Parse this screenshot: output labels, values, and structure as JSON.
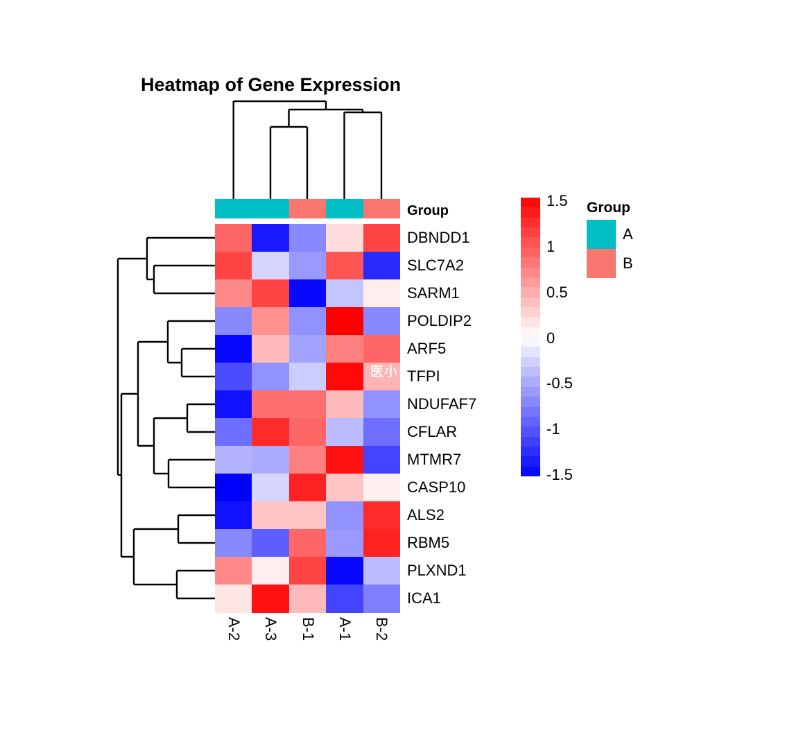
{
  "title": "Heatmap of Gene Expression",
  "watermark": "医小",
  "chart_data": {
    "type": "heatmap",
    "title": "Heatmap of Gene Expression",
    "columns": [
      "A-2",
      "A-3",
      "B-1",
      "A-1",
      "B-2"
    ],
    "column_groups": [
      "A",
      "A",
      "B",
      "A",
      "B"
    ],
    "rows": [
      "DBNDD1",
      "SLC7A2",
      "SARM1",
      "POLDIP2",
      "ARF5",
      "TFPI",
      "NDUFAF7",
      "CFLAR",
      "MTMR7",
      "CASP10",
      "ALS2",
      "RBM5",
      "PLXND1",
      "ICA1"
    ],
    "values": [
      [
        0.9,
        -1.35,
        -0.7,
        0.2,
        1.1
      ],
      [
        1.1,
        -0.25,
        -0.6,
        1.0,
        -1.25
      ],
      [
        0.7,
        1.1,
        -1.45,
        -0.35,
        0.1
      ],
      [
        -0.7,
        0.65,
        -0.65,
        1.5,
        -0.7
      ],
      [
        -1.45,
        0.4,
        -0.55,
        0.75,
        0.9
      ],
      [
        -1.05,
        -0.65,
        -0.3,
        1.45,
        0.45
      ],
      [
        -1.4,
        0.85,
        0.85,
        0.4,
        -0.65
      ],
      [
        -0.85,
        1.25,
        0.9,
        -0.4,
        -0.85
      ],
      [
        -0.45,
        -0.5,
        0.75,
        1.4,
        -1.1
      ],
      [
        -1.5,
        -0.25,
        1.3,
        0.35,
        0.1
      ],
      [
        -1.4,
        0.35,
        0.35,
        -0.65,
        1.25
      ],
      [
        -0.7,
        -0.95,
        0.9,
        -0.6,
        1.3
      ],
      [
        0.7,
        0.1,
        1.1,
        -1.45,
        -0.4
      ],
      [
        0.15,
        1.4,
        0.4,
        -1.1,
        -0.75
      ]
    ],
    "color_scale": {
      "low": "#0000FF",
      "mid": "#FFFFFF",
      "high": "#FF0000",
      "limits": [
        -1.5,
        1.5
      ]
    },
    "colorbar_ticks": [
      "1.5",
      "1",
      "0.5",
      "0",
      "-0.5",
      "-1",
      "-1.5"
    ],
    "row_annotation_label": "Group",
    "legend": {
      "title": "Group",
      "items": [
        {
          "label": "A",
          "color": "#00BFC4"
        },
        {
          "label": "B",
          "color": "#F8766D"
        }
      ]
    },
    "col_dendrogram": [
      [
        336.7,
        146,
        336.7,
        287
      ],
      [
        390,
        183,
        390,
        287
      ],
      [
        443,
        183,
        443,
        287
      ],
      [
        390,
        183,
        443,
        183
      ],
      [
        416.5,
        158,
        416.5,
        183
      ],
      [
        496.5,
        162,
        496.5,
        287
      ],
      [
        550,
        162,
        550,
        287
      ],
      [
        496.5,
        162,
        550,
        162
      ],
      [
        523,
        158,
        523,
        162
      ],
      [
        416.5,
        158,
        523,
        158
      ],
      [
        470,
        146,
        470,
        158
      ],
      [
        336.7,
        146,
        470,
        146
      ]
    ],
    "row_dendrogram": [
      [
        212,
        343,
        310,
        343
      ],
      [
        222,
        383,
        310,
        383
      ],
      [
        222,
        423,
        310,
        423
      ],
      [
        222,
        383,
        222,
        423
      ],
      [
        212,
        403,
        222,
        403
      ],
      [
        212,
        343,
        212,
        403
      ],
      [
        170,
        373,
        212,
        373
      ],
      [
        170,
        373,
        170,
        685
      ],
      [
        170,
        685,
        175,
        685
      ],
      [
        242,
        463,
        310,
        463
      ],
      [
        262,
        503,
        310,
        503
      ],
      [
        262,
        543,
        310,
        543
      ],
      [
        262,
        503,
        262,
        543
      ],
      [
        242,
        523,
        262,
        523
      ],
      [
        242,
        463,
        242,
        523
      ],
      [
        199,
        493,
        242,
        493
      ],
      [
        270,
        583,
        310,
        583
      ],
      [
        270,
        623,
        310,
        623
      ],
      [
        270,
        583,
        270,
        623
      ],
      [
        222,
        603,
        270,
        603
      ],
      [
        243,
        663,
        310,
        663
      ],
      [
        243,
        703,
        310,
        703
      ],
      [
        243,
        663,
        243,
        703
      ],
      [
        222,
        683,
        243,
        683
      ],
      [
        222,
        603,
        222,
        683
      ],
      [
        199,
        643,
        222,
        643
      ],
      [
        199,
        493,
        199,
        643
      ],
      [
        175,
        568,
        199,
        568
      ],
      [
        257,
        743,
        310,
        743
      ],
      [
        257,
        783,
        310,
        783
      ],
      [
        257,
        743,
        257,
        783
      ],
      [
        193,
        763,
        257,
        763
      ],
      [
        255,
        823,
        310,
        823
      ],
      [
        255,
        863,
        310,
        863
      ],
      [
        255,
        823,
        255,
        863
      ],
      [
        193,
        843,
        255,
        843
      ],
      [
        193,
        763,
        193,
        843
      ],
      [
        175,
        803,
        193,
        803
      ],
      [
        175,
        568,
        175,
        803
      ]
    ]
  }
}
